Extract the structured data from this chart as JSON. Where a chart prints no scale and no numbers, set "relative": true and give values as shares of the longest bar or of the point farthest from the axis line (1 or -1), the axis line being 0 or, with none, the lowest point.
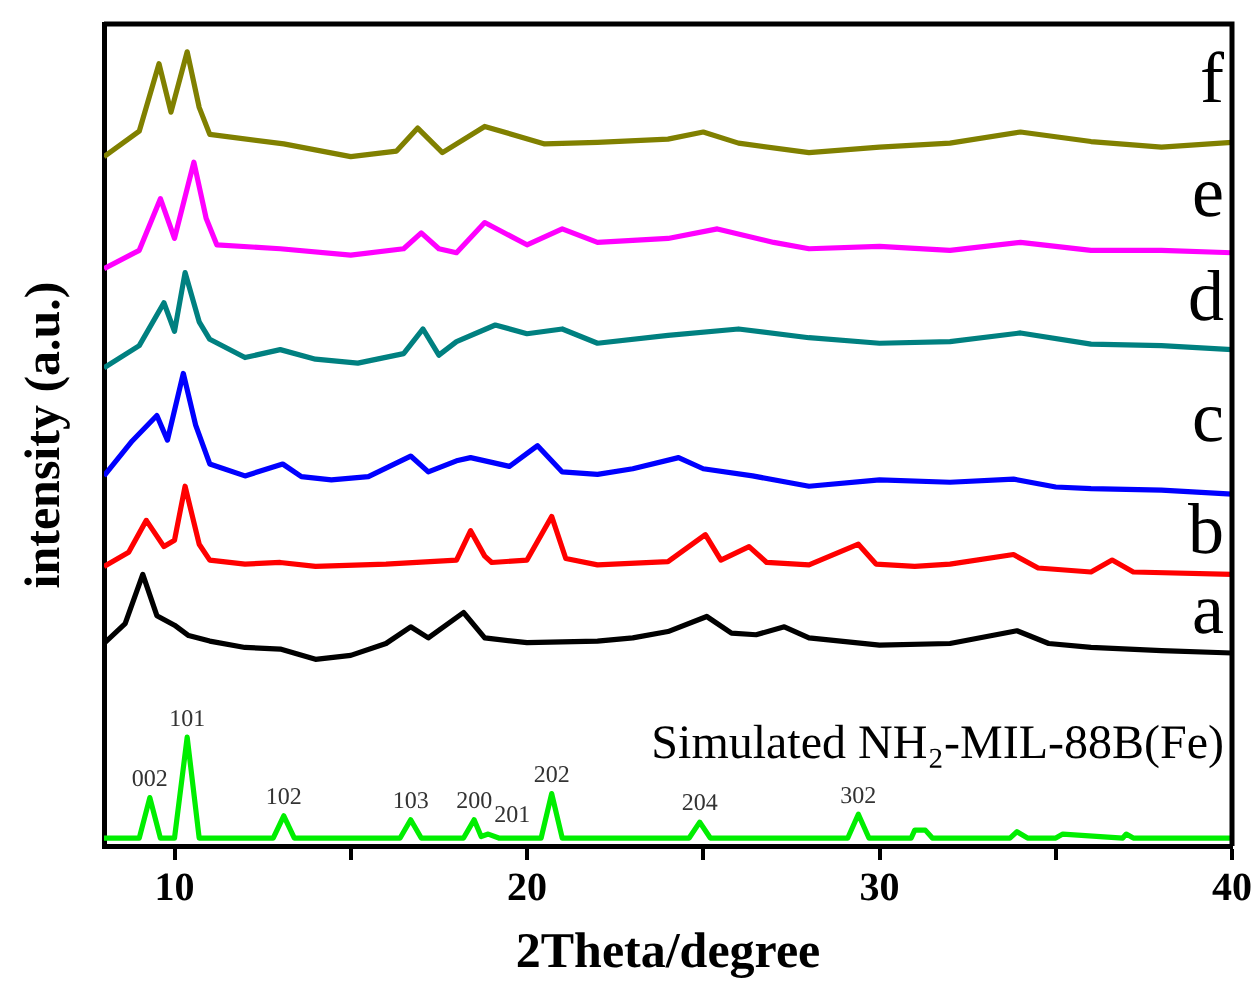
{
  "chart_data": {
    "type": "line",
    "relative": true,
    "xlabel": "2Theta/degree",
    "ylabel": "intensity (a.u.)",
    "xlim": [
      8,
      40
    ],
    "xticks": [
      10,
      {
        "value": 15,
        "label": null
      },
      20,
      {
        "value": 25,
        "label": null
      },
      30,
      {
        "value": 35,
        "label": null
      },
      40
    ],
    "grid": false,
    "legend": false,
    "marker": "none",
    "line_style": "solid",
    "series": [
      {
        "name": "Simulated NH₂-MIL-88B(Fe)",
        "color": "#00ee00",
        "x": [
          8,
          9.0,
          9.3,
          9.6,
          10.0,
          10.36,
          10.7,
          12.8,
          13.1,
          13.4,
          16.4,
          16.7,
          17.0,
          18.2,
          18.5,
          18.7,
          18.9,
          19.2,
          20.4,
          20.7,
          21.0,
          24.6,
          24.9,
          25.2,
          29.1,
          29.4,
          29.7,
          30.9,
          31.0,
          31.3,
          31.5,
          33.7,
          33.9,
          34.2,
          35.0,
          35.2,
          36.9,
          37.0,
          37.2,
          40
        ],
        "values": [
          0.01,
          0.01,
          0.061,
          0.01,
          0.01,
          0.137,
          0.01,
          0.01,
          0.038,
          0.01,
          0.01,
          0.033,
          0.01,
          0.01,
          0.033,
          0.012,
          0.015,
          0.01,
          0.01,
          0.066,
          0.01,
          0.01,
          0.03,
          0.01,
          0.01,
          0.04,
          0.01,
          0.01,
          0.02,
          0.02,
          0.01,
          0.01,
          0.018,
          0.01,
          0.01,
          0.015,
          0.01,
          0.015,
          0.01,
          0.01
        ]
      },
      {
        "name": "a",
        "color": "#000000",
        "x": [
          8,
          8.6,
          9.1,
          9.5,
          10.0,
          10.4,
          11,
          12,
          13,
          14,
          15,
          16,
          16.7,
          17.2,
          18.2,
          18.8,
          20,
          22,
          23,
          24,
          25.1,
          25.8,
          26.5,
          27.3,
          28,
          30,
          32,
          33.9,
          34.8,
          36,
          38,
          40
        ],
        "values": [
          0.255,
          0.28,
          0.342,
          0.29,
          0.278,
          0.265,
          0.258,
          0.25,
          0.248,
          0.235,
          0.24,
          0.255,
          0.276,
          0.262,
          0.294,
          0.262,
          0.256,
          0.258,
          0.262,
          0.27,
          0.289,
          0.268,
          0.266,
          0.276,
          0.262,
          0.253,
          0.255,
          0.271,
          0.255,
          0.25,
          0.246,
          0.243
        ]
      },
      {
        "name": "b",
        "color": "#ff0000",
        "x": [
          8,
          8.7,
          9.2,
          9.7,
          10.0,
          10.3,
          10.7,
          11,
          12,
          13,
          14,
          16,
          18,
          18.4,
          18.8,
          19,
          20,
          20.7,
          21.1,
          22,
          24,
          25.06,
          25.5,
          26.3,
          26.8,
          28,
          29.4,
          29.9,
          31,
          32,
          33.8,
          34.5,
          36,
          36.6,
          37.2,
          40
        ],
        "values": [
          0.352,
          0.37,
          0.41,
          0.377,
          0.385,
          0.453,
          0.38,
          0.36,
          0.355,
          0.357,
          0.352,
          0.355,
          0.36,
          0.397,
          0.365,
          0.357,
          0.36,
          0.415,
          0.362,
          0.354,
          0.358,
          0.392,
          0.36,
          0.377,
          0.357,
          0.354,
          0.38,
          0.355,
          0.352,
          0.355,
          0.367,
          0.35,
          0.345,
          0.36,
          0.345,
          0.342
        ]
      },
      {
        "name": "c",
        "color": "#0000ff",
        "x": [
          8,
          8.8,
          9.5,
          9.8,
          10.25,
          10.6,
          11,
          12,
          13.07,
          13.6,
          14.45,
          15.5,
          16.7,
          17.2,
          18,
          18.4,
          19,
          19.5,
          20.3,
          21,
          22,
          23,
          24.3,
          25,
          26.4,
          28,
          30,
          32,
          33.8,
          35,
          36,
          38,
          40
        ],
        "values": [
          0.466,
          0.51,
          0.542,
          0.511,
          0.595,
          0.53,
          0.481,
          0.466,
          0.481,
          0.465,
          0.461,
          0.465,
          0.491,
          0.471,
          0.485,
          0.489,
          0.483,
          0.478,
          0.504,
          0.471,
          0.468,
          0.475,
          0.489,
          0.475,
          0.466,
          0.453,
          0.461,
          0.458,
          0.462,
          0.452,
          0.45,
          0.448,
          0.443
        ]
      },
      {
        "name": "d",
        "color": "#008080",
        "x": [
          8,
          9.0,
          9.7,
          10.0,
          10.3,
          10.7,
          11,
          12,
          13,
          14,
          15.2,
          16.5,
          17.05,
          17.5,
          18,
          19.1,
          20,
          21,
          22,
          24,
          26,
          28,
          30,
          32,
          34,
          36,
          38,
          40
        ],
        "values": [
          0.602,
          0.63,
          0.684,
          0.648,
          0.722,
          0.66,
          0.638,
          0.615,
          0.625,
          0.613,
          0.608,
          0.62,
          0.651,
          0.618,
          0.635,
          0.656,
          0.645,
          0.651,
          0.633,
          0.643,
          0.651,
          0.64,
          0.633,
          0.635,
          0.646,
          0.632,
          0.63,
          0.625
        ]
      },
      {
        "name": "e",
        "color": "#ff00ff",
        "x": [
          8,
          9.0,
          9.6,
          10.0,
          10.55,
          10.9,
          11.2,
          13,
          15,
          16.5,
          17,
          17.5,
          18,
          18.8,
          20,
          21,
          22,
          24,
          25.4,
          27,
          28,
          30,
          32,
          34,
          36,
          38,
          40
        ],
        "values": [
          0.727,
          0.75,
          0.815,
          0.765,
          0.861,
          0.79,
          0.757,
          0.752,
          0.744,
          0.752,
          0.772,
          0.752,
          0.747,
          0.785,
          0.757,
          0.777,
          0.76,
          0.765,
          0.777,
          0.76,
          0.752,
          0.755,
          0.75,
          0.76,
          0.75,
          0.75,
          0.747
        ]
      },
      {
        "name": "f",
        "color": "#808000",
        "x": [
          8,
          9.0,
          9.56,
          9.9,
          10.36,
          10.7,
          11,
          13.1,
          15,
          16.3,
          16.9,
          17.6,
          18.8,
          20.5,
          22,
          24,
          25,
          26,
          28,
          30,
          32,
          34,
          36,
          38,
          40
        ],
        "values": [
          0.868,
          0.9,
          0.985,
          0.924,
          1.0,
          0.93,
          0.896,
          0.884,
          0.868,
          0.875,
          0.904,
          0.873,
          0.906,
          0.884,
          0.886,
          0.89,
          0.899,
          0.885,
          0.873,
          0.88,
          0.885,
          0.899,
          0.887,
          0.88,
          0.886
        ]
      }
    ],
    "annotations": [
      {
        "text": "002",
        "x": 9.3,
        "y": 0.061
      },
      {
        "text": "101",
        "x": 10.36,
        "y": 0.137
      },
      {
        "text": "102",
        "x": 13.1,
        "y": 0.038
      },
      {
        "text": "103",
        "x": 16.7,
        "y": 0.033
      },
      {
        "text": "200",
        "x": 18.5,
        "y": 0.033
      },
      {
        "text": "201",
        "x": 18.9,
        "y": 0.015
      },
      {
        "text": "202",
        "x": 20.7,
        "y": 0.066
      },
      {
        "text": "204",
        "x": 24.9,
        "y": 0.03
      },
      {
        "text": "302",
        "x": 29.4,
        "y": 0.04
      }
    ]
  }
}
